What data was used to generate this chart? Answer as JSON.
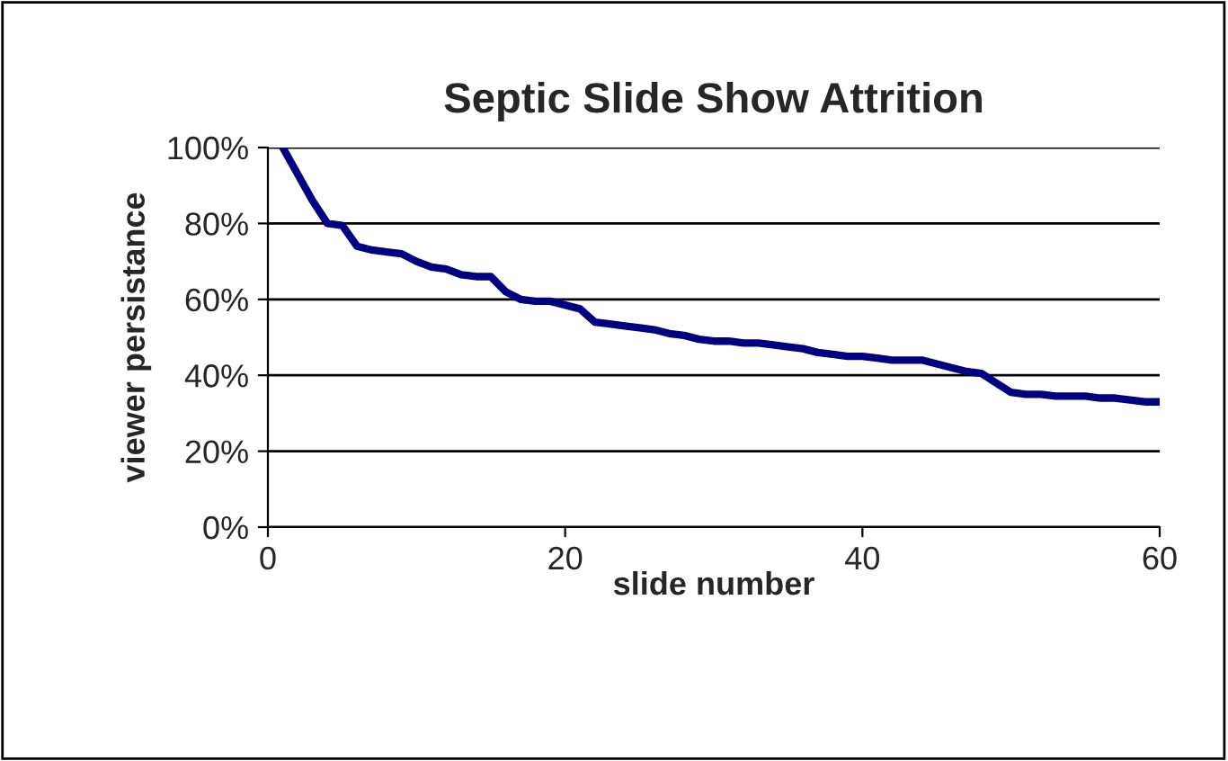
{
  "chart_data": {
    "type": "line",
    "title": "Septic Slide Show Attrition",
    "xlabel": "slide number",
    "ylabel": "viewer persistance",
    "x": [
      1,
      2,
      3,
      4,
      5,
      6,
      7,
      8,
      9,
      10,
      11,
      12,
      13,
      14,
      15,
      16,
      17,
      18,
      19,
      20,
      21,
      22,
      23,
      24,
      25,
      26,
      27,
      28,
      29,
      30,
      31,
      32,
      33,
      34,
      35,
      36,
      37,
      38,
      39,
      40,
      41,
      42,
      43,
      44,
      45,
      46,
      47,
      48,
      49,
      50,
      51,
      52,
      53,
      54,
      55,
      56,
      57,
      58,
      59,
      60
    ],
    "series": [
      {
        "color": "#000080",
        "values": [
          100,
          93,
          86,
          80,
          79.5,
          74,
          73,
          72.5,
          72,
          70,
          68.5,
          68,
          66.5,
          66,
          66,
          62,
          60,
          59.5,
          59.5,
          58.5,
          57.5,
          54,
          53.5,
          53,
          52.5,
          52,
          51,
          50.5,
          49.5,
          49,
          49,
          48.5,
          48.5,
          48,
          47.5,
          47,
          46,
          45.5,
          45,
          45,
          44.5,
          44,
          44,
          44,
          43,
          42,
          41,
          40.5,
          38,
          35.5,
          35,
          35,
          34.5,
          34.5,
          34.5,
          34,
          34,
          33.5,
          33,
          33
        ]
      }
    ],
    "xlim": [
      0,
      60
    ],
    "xticks": [
      0,
      20,
      40,
      60
    ],
    "ylim": [
      0,
      100
    ],
    "yticks": [
      {
        "value": 0,
        "label": "0%"
      },
      {
        "value": 20,
        "label": "20%"
      },
      {
        "value": 40,
        "label": "40%"
      },
      {
        "value": 60,
        "label": "60%"
      },
      {
        "value": 80,
        "label": "80%"
      },
      {
        "value": 100,
        "label": "100%"
      }
    ],
    "grid": "y",
    "legend": false,
    "marker": "none",
    "line_style": "solid"
  }
}
